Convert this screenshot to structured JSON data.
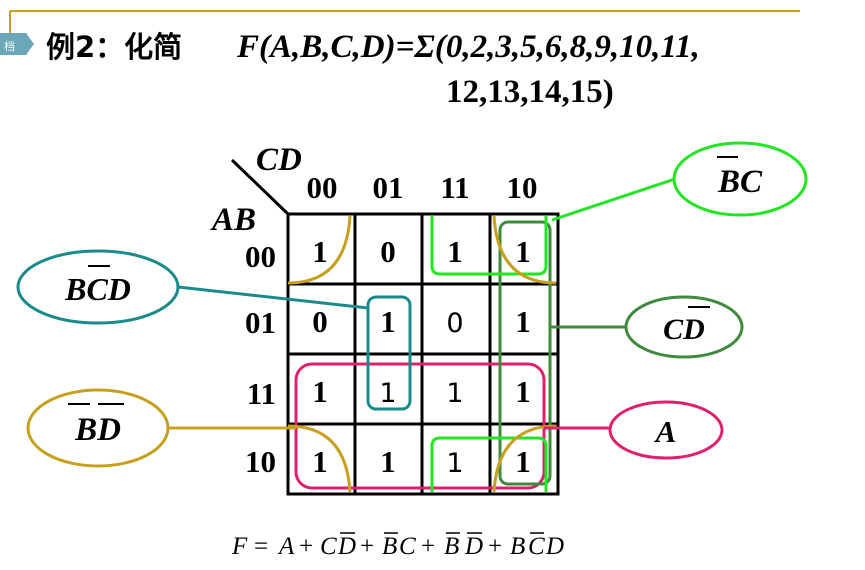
{
  "slide": {
    "tab_label": "档",
    "title_prefix": "例2：化简",
    "function_line1": "F(A,B,C,D)=Σ(0,2,3,5,6,8,9,10,11,",
    "function_line2": "12,13,14,15)"
  },
  "kmap": {
    "col_var": "CD",
    "row_var": "AB",
    "col_headers": [
      "00",
      "01",
      "11",
      "10"
    ],
    "row_headers": [
      "00",
      "01",
      "11",
      "10"
    ],
    "cells": [
      [
        "1",
        "0",
        "1",
        "1"
      ],
      [
        "0",
        "1",
        "0",
        "1"
      ],
      [
        "1",
        "1",
        "1",
        "1"
      ],
      [
        "1",
        "1",
        "1",
        "1"
      ]
    ]
  },
  "groups": {
    "bc": {
      "label": "BC",
      "color": "#22e622"
    },
    "bcd": {
      "label": "BCD",
      "color": "#1a8a8a"
    },
    "cd": {
      "label": "CD",
      "color": "#3f8a3f"
    },
    "bd": {
      "label": "BD",
      "color": "#c8a020"
    },
    "a": {
      "label": "A",
      "color": "#e0206f"
    }
  },
  "result": {
    "lhs": "F",
    "eq": "=",
    "t1": "A",
    "plus": "+",
    "t2a": "C",
    "t2b": "D",
    "t3a": "B",
    "t3b": "C",
    "t4a": "B",
    "t4b": "D",
    "t5a": "B",
    "t5b": "C",
    "t5c": "D"
  }
}
